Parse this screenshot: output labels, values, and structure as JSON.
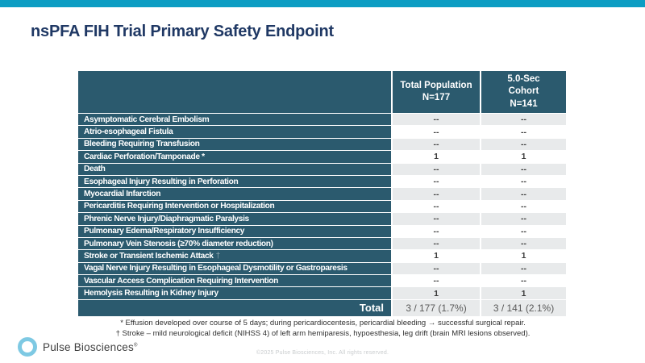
{
  "slide": {
    "title": "nsPFA FIH Trial Primary Safety Endpoint",
    "accent_bar_color": "#0d9dc3",
    "title_color": "#1f3864"
  },
  "table": {
    "header_color": "#2b5a6e",
    "row_shade_color": "#e8eaeb",
    "columns": [
      {
        "lines": [
          "Total Population",
          "N=177"
        ]
      },
      {
        "lines": [
          "5.0-Sec",
          "Cohort",
          "N=141"
        ]
      }
    ],
    "rows": [
      {
        "label": "Asymptomatic Cerebral Embolism",
        "total_population": "--",
        "cohort": "--"
      },
      {
        "label": "Atrio-esophageal Fistula",
        "total_population": "--",
        "cohort": "--"
      },
      {
        "label": "Bleeding Requiring Transfusion",
        "total_population": "--",
        "cohort": "--"
      },
      {
        "label": "Cardiac Perforation/Tamponade *",
        "total_population": "1",
        "cohort": "1"
      },
      {
        "label": "Death",
        "total_population": "--",
        "cohort": "--"
      },
      {
        "label": "Esophageal Injury Resulting in Perforation",
        "total_population": "--",
        "cohort": "--"
      },
      {
        "label": "Myocardial Infarction",
        "total_population": "--",
        "cohort": "--"
      },
      {
        "label": "Pericarditis Requiring Intervention or Hospitalization",
        "total_population": "--",
        "cohort": "--"
      },
      {
        "label": "Phrenic Nerve Injury/Diaphragmatic Paralysis",
        "total_population": "--",
        "cohort": "--"
      },
      {
        "label": "Pulmonary Edema/Respiratory Insufficiency",
        "total_population": "--",
        "cohort": "--"
      },
      {
        "label": "Pulmonary Vein Stenosis (≥70% diameter reduction)",
        "total_population": "--",
        "cohort": "--"
      },
      {
        "label": "Stroke or Transient Ischemic Attack",
        "suffix": "†",
        "total_population": "1",
        "cohort": "1"
      },
      {
        "label": "Vagal Nerve Injury Resulting in Esophageal Dysmotility or Gastroparesis",
        "total_population": "--",
        "cohort": "--"
      },
      {
        "label": "Vascular Access Complication Requiring Intervention",
        "total_population": "--",
        "cohort": "--"
      },
      {
        "label": "Hemolysis Resulting in Kidney Injury",
        "total_population": "1",
        "cohort": "1"
      }
    ],
    "total_row": {
      "label": "Total",
      "total_population": "3 / 177 (1.7%)",
      "cohort": "3 / 141 (2.1%)"
    }
  },
  "footnotes": [
    "* Effusion developed over course of 5 days; during pericardiocentesis, pericardial bleeding → successful surgical repair.",
    "† Stroke – mild neurological deficit (NIHSS 4) of left arm hemiparesis, hypoesthesia, leg drift (brain MRI lesions observed)."
  ],
  "footer": {
    "logo_text": "Pulse Biosciences",
    "logo_trademark": "®",
    "copyright": "©2025 Pulse Biosciences, Inc. All rights reserved."
  }
}
